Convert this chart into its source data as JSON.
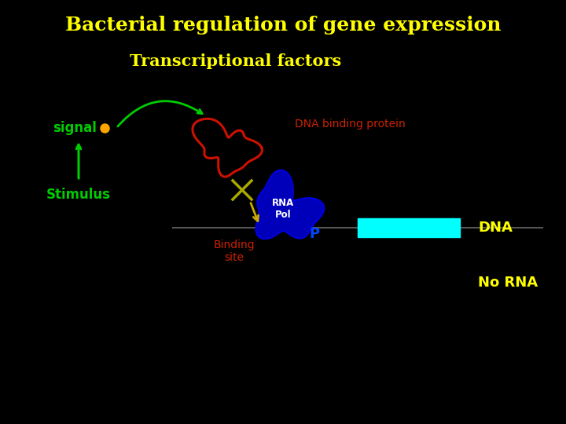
{
  "background_color": "#000000",
  "title": "Bacterial regulation of gene expression",
  "title_color": "#ffff00",
  "title_fontsize": 18,
  "subtitle": "Transcriptional factors",
  "subtitle_color": "#ffff00",
  "subtitle_fontsize": 15,
  "signal_label": "signal",
  "signal_color": "#00cc00",
  "stimulus_label": "Stimulus",
  "stimulus_color": "#00cc00",
  "dna_binding_label": "DNA binding protein",
  "dna_binding_color": "#cc2200",
  "binding_site_label": "Binding\nsite",
  "binding_site_color": "#cc2200",
  "dna_label": "DNA",
  "dna_color": "#ffff00",
  "no_rna_label": "No RNA",
  "no_rna_color": "#ffff00",
  "p_label": "P",
  "p_color": "#0044ff",
  "rna_pol_label": "RNA\nPol",
  "rna_pol_color": "#ffffff",
  "dna_rect_color": "#00ffff",
  "signal_dot_color": "#ffa500",
  "x_mark_color": "#888800",
  "arrow_color_yellow": "#ccaa00"
}
